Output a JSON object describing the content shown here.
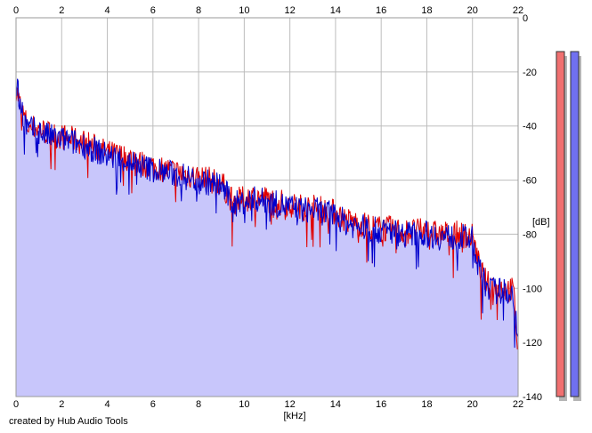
{
  "chart_data": {
    "type": "line",
    "xlabel": "[kHz]",
    "ylabel": "[dB]",
    "xlim": [
      0,
      22
    ],
    "ylim": [
      -140,
      0
    ],
    "x_ticks": [
      0,
      2,
      4,
      6,
      8,
      10,
      12,
      14,
      16,
      18,
      20,
      22
    ],
    "x_tick_labels": [
      "0",
      "2",
      "4",
      "6",
      "8",
      "10",
      "12",
      "14",
      "16",
      "18",
      "20",
      "22"
    ],
    "y_ticks": [
      0,
      -20,
      -40,
      -60,
      -80,
      -100,
      -120,
      -140
    ],
    "y_tick_labels": [
      "0",
      "-20",
      "-40",
      "-60",
      "-80",
      "-100",
      "-120",
      "-140"
    ],
    "grid": true,
    "series": [
      {
        "color": "#e00000",
        "x": [
          0,
          0.2,
          0.5,
          1,
          1.5,
          2,
          2.5,
          3,
          3.5,
          4,
          4.5,
          5,
          5.5,
          6,
          6.5,
          7,
          7.5,
          8,
          8.5,
          9,
          9.5,
          10,
          10.5,
          11,
          11.5,
          12,
          12.5,
          13,
          13.5,
          14,
          14.5,
          15,
          15.5,
          16,
          16.5,
          17,
          17.5,
          18,
          18.5,
          19,
          19.5,
          20,
          20.3,
          20.6,
          21,
          21.5,
          21.8,
          22
        ],
        "y": [
          -26,
          -33,
          -40,
          -41,
          -43,
          -44,
          -45,
          -46,
          -48,
          -50,
          -51,
          -52,
          -54,
          -55,
          -56,
          -57,
          -58,
          -59,
          -60,
          -61,
          -68,
          -67,
          -66,
          -67,
          -68,
          -69,
          -70,
          -70,
          -71,
          -72,
          -75,
          -76,
          -77,
          -78,
          -78,
          -79,
          -79,
          -79,
          -80,
          -80,
          -80,
          -81,
          -92,
          -98,
          -100,
          -100,
          -101,
          -124
        ]
      },
      {
        "color": "#0000cc",
        "x": [
          0,
          0.2,
          0.5,
          1,
          1.5,
          2,
          2.5,
          3,
          3.5,
          4,
          4.5,
          5,
          5.5,
          6,
          6.5,
          7,
          7.5,
          8,
          8.5,
          9,
          9.5,
          10,
          10.5,
          11,
          11.5,
          12,
          12.5,
          13,
          13.5,
          14,
          14.5,
          15,
          15.5,
          16,
          16.5,
          17,
          17.5,
          18,
          18.5,
          19,
          19.5,
          20,
          20.3,
          20.6,
          21,
          21.5,
          21.8,
          22
        ],
        "y": [
          -25,
          -32,
          -41,
          -42,
          -44,
          -45,
          -46,
          -47,
          -49,
          -51,
          -52,
          -53,
          -55,
          -56,
          -57,
          -58,
          -59,
          -60,
          -61,
          -62,
          -69,
          -68,
          -67,
          -68,
          -69,
          -70,
          -71,
          -71,
          -72,
          -73,
          -76,
          -77,
          -78,
          -79,
          -79,
          -80,
          -80,
          -80,
          -81,
          -81,
          -81,
          -82,
          -93,
          -99,
          -101,
          -101,
          -102,
          -122
        ]
      }
    ],
    "credit": "created by Hub Audio Tools",
    "meters": [
      {
        "color": "#f07070",
        "level": 1.0
      },
      {
        "color": "#7070f0",
        "level": 1.0
      }
    ]
  }
}
